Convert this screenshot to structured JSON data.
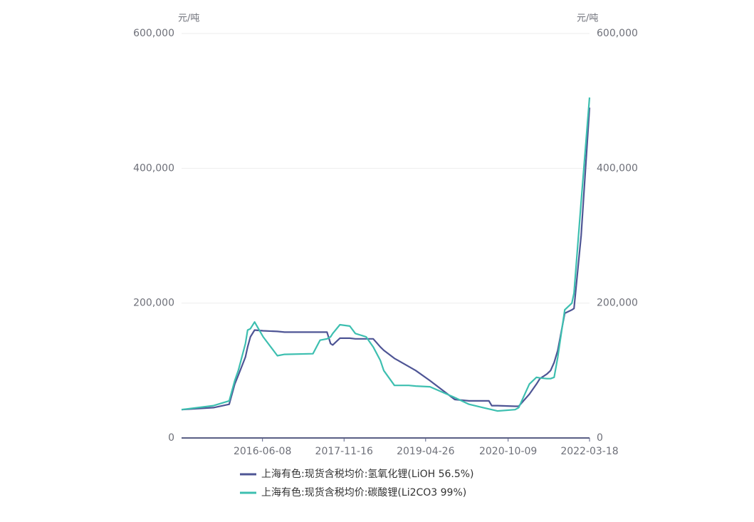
{
  "chart_data": {
    "type": "line",
    "yaxis_label": "元/吨",
    "y2axis_label": "元/吨",
    "x": [
      "2015-01-03",
      "2015-07-28",
      "2015-11-06",
      "2015-12-12",
      "2016-01-04",
      "2016-02-19",
      "2016-03-04",
      "2016-03-22",
      "2016-04-18",
      "2016-06-12",
      "2016-09-12",
      "2016-10-28",
      "2017-04-29",
      "2017-06-14",
      "2017-07-29",
      "2017-08-21",
      "2017-09-04",
      "2017-10-20",
      "2017-12-23",
      "2018-01-28",
      "2018-04-07",
      "2018-05-23",
      "2018-07-08",
      "2018-07-30",
      "2018-10-07",
      "2018-10-30",
      "2019-01-07",
      "2019-02-21",
      "2019-05-24",
      "2019-10-31",
      "2020-01-31",
      "2020-05-01",
      "2020-06-07",
      "2020-06-25",
      "2020-08-01",
      "2020-11-23",
      "2020-12-16",
      "2021-02-23",
      "2021-04-10",
      "2021-05-02",
      "2021-06-17",
      "2021-07-10",
      "2021-08-02",
      "2021-08-25",
      "2021-10-09",
      "2021-11-24",
      "2021-12-08",
      "2022-01-23",
      "2022-03-18"
    ],
    "series": [
      {
        "name": "上海有色:现货含税均价:氢氧化锂(LiOH 56.5%)",
        "color": "#4e5595",
        "values": [
          42000,
          45000,
          50000,
          80000,
          93000,
          120000,
          135000,
          150000,
          160000,
          159000,
          158000,
          157000,
          157000,
          157000,
          157000,
          140000,
          138000,
          148000,
          148000,
          147000,
          147000,
          147000,
          135000,
          130000,
          118000,
          115000,
          106000,
          100000,
          85000,
          57000,
          55000,
          55000,
          55000,
          48000,
          48000,
          47000,
          47000,
          65000,
          80000,
          88000,
          95000,
          100000,
          112000,
          130000,
          185000,
          190000,
          192000,
          300000,
          490000
        ]
      },
      {
        "name": "上海有色:现货含税均价:碳酸锂(Li2CO3 99%)",
        "color": "#3dbfb0",
        "axis": "y2",
        "values": [
          42000,
          48000,
          55000,
          85000,
          100000,
          140000,
          160000,
          162000,
          172000,
          150000,
          122000,
          124000,
          125000,
          145000,
          147000,
          150000,
          155000,
          168000,
          166000,
          155000,
          150000,
          135000,
          115000,
          100000,
          78000,
          78000,
          78000,
          77000,
          76000,
          60000,
          50000,
          45000,
          43000,
          42000,
          40000,
          42000,
          45000,
          80000,
          90000,
          89000,
          88000,
          88000,
          90000,
          120000,
          190000,
          200000,
          215000,
          350000,
          505000
        ]
      }
    ],
    "xlim": [
      "2015-01-03",
      "2022-03-18"
    ],
    "xticks": [
      "2016-06-08",
      "2017-11-16",
      "2019-04-26",
      "2020-10-09",
      "2022-03-18"
    ],
    "ylim": [
      0,
      600000
    ],
    "yticks": [
      0,
      {
        "value": 200000,
        "label": "200,000"
      },
      {
        "value": 400000,
        "label": "400,000"
      },
      {
        "value": 600000,
        "label": "600,000"
      }
    ],
    "y2lim": [
      0,
      600000
    ],
    "y2ticks": [
      0,
      {
        "value": 200000,
        "label": "200,000"
      },
      {
        "value": 400000,
        "label": "400,000"
      },
      {
        "value": 600000,
        "label": "600,000"
      }
    ],
    "grid": true
  }
}
